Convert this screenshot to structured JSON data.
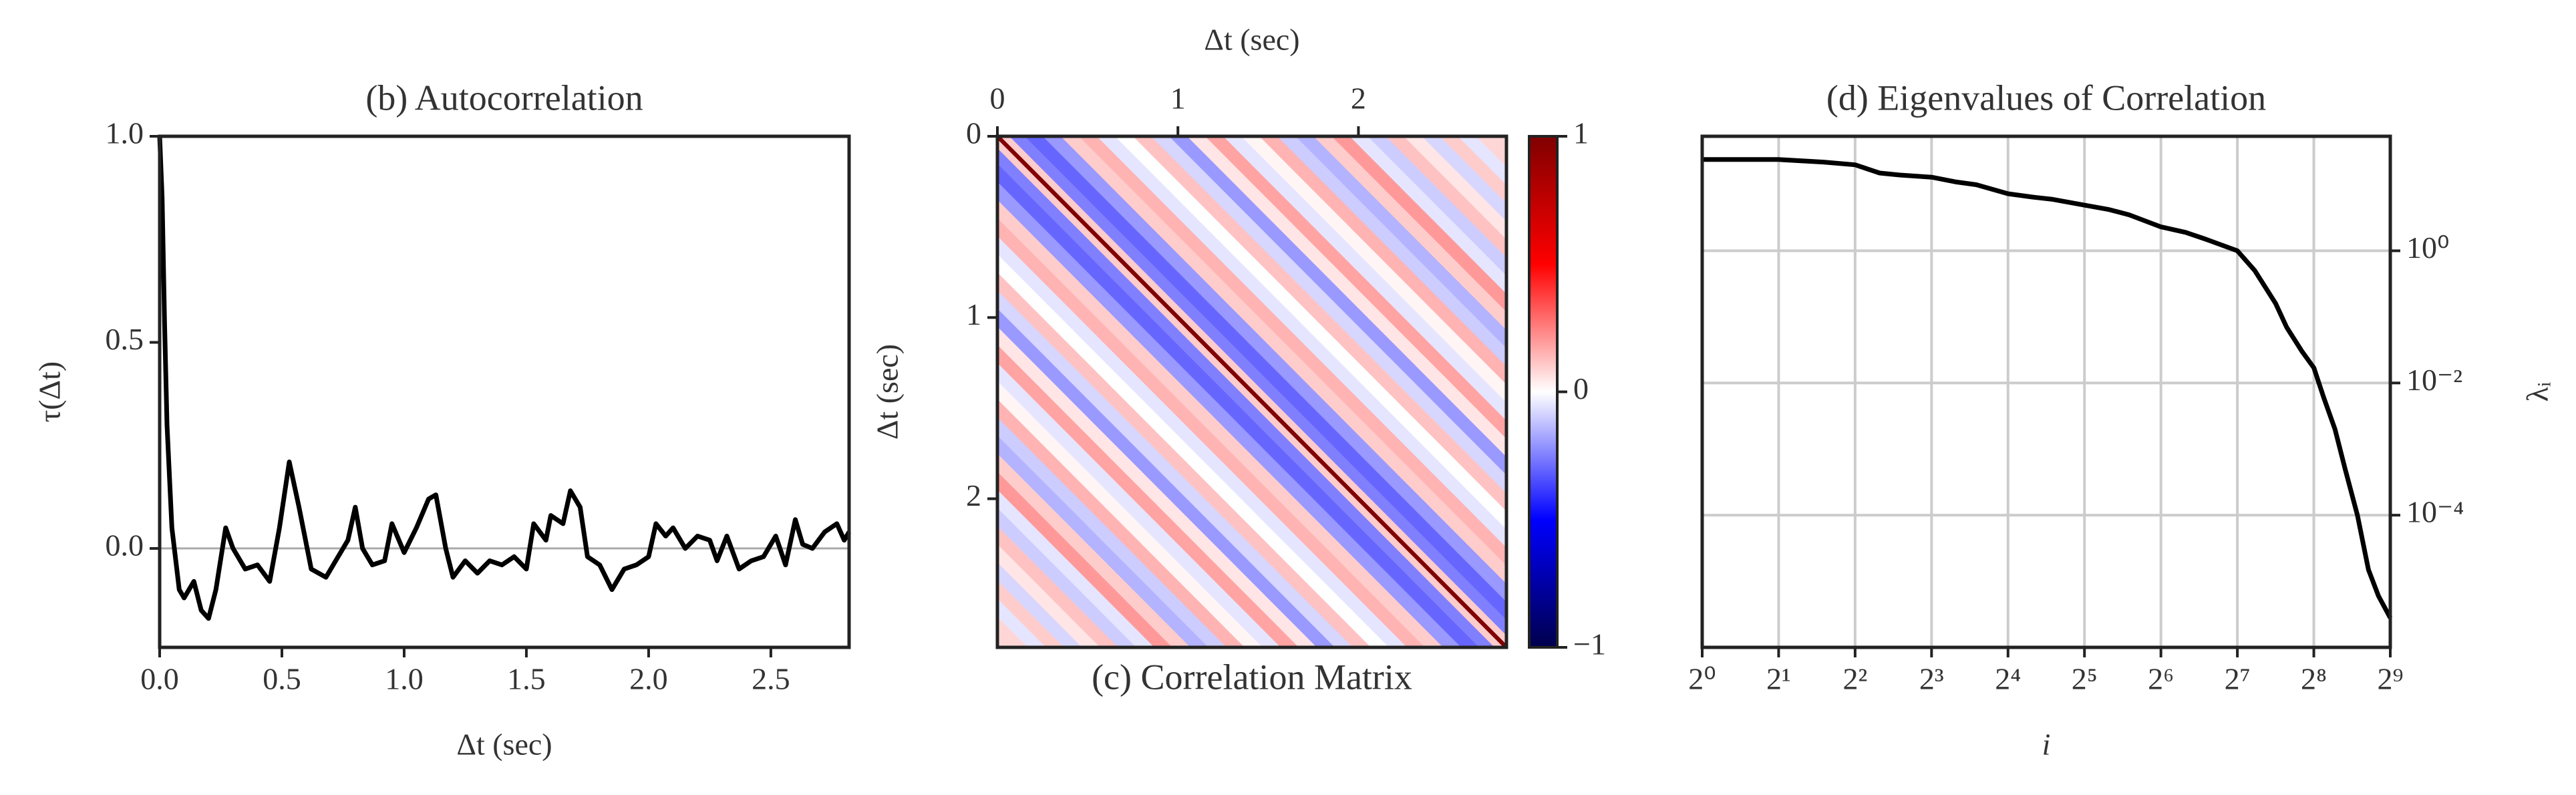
{
  "chart_data": [
    {
      "type": "line",
      "title": "(b) Autocorrelation",
      "xlabel": "Δt (sec)",
      "ylabel": "τ(Δt)",
      "x": [
        0,
        0.01,
        0.02,
        0.03,
        0.05,
        0.08,
        0.1,
        0.14,
        0.17,
        0.2,
        0.23,
        0.27,
        0.3,
        0.35,
        0.4,
        0.45,
        0.49,
        0.53,
        0.57,
        0.62,
        0.68,
        0.72,
        0.77,
        0.8,
        0.83,
        0.87,
        0.92,
        0.95,
        1.0,
        1.05,
        1.1,
        1.13,
        1.17,
        1.2,
        1.25,
        1.3,
        1.35,
        1.4,
        1.45,
        1.5,
        1.53,
        1.58,
        1.6,
        1.65,
        1.68,
        1.72,
        1.75,
        1.8,
        1.85,
        1.9,
        1.95,
        2.0,
        2.03,
        2.07,
        2.1,
        2.15,
        2.2,
        2.25,
        2.28,
        2.32,
        2.37,
        2.42,
        2.47,
        2.52,
        2.56,
        2.6,
        2.63,
        2.67,
        2.72,
        2.77,
        2.8,
        2.82
      ],
      "values": [
        1.0,
        0.85,
        0.55,
        0.3,
        0.05,
        -0.1,
        -0.12,
        -0.08,
        -0.15,
        -0.17,
        -0.1,
        0.05,
        0.0,
        -0.05,
        -0.04,
        -0.08,
        0.05,
        0.21,
        0.1,
        -0.05,
        -0.07,
        -0.03,
        0.02,
        0.1,
        0.0,
        -0.04,
        -0.03,
        0.06,
        -0.01,
        0.05,
        0.12,
        0.13,
        0.0,
        -0.07,
        -0.03,
        -0.06,
        -0.03,
        -0.04,
        -0.02,
        -0.05,
        0.06,
        0.02,
        0.08,
        0.06,
        0.14,
        0.1,
        -0.02,
        -0.04,
        -0.1,
        -0.05,
        -0.04,
        -0.02,
        0.06,
        0.03,
        0.05,
        0.0,
        0.03,
        0.02,
        -0.03,
        0.03,
        -0.05,
        -0.03,
        -0.02,
        0.03,
        -0.04,
        0.07,
        0.01,
        0.0,
        0.04,
        0.06,
        0.02,
        0.04
      ],
      "color": "#000000",
      "hline": 0,
      "hline_color": "#aaaaaa",
      "xlim": [
        0,
        2.82
      ],
      "ylim": [
        -0.24,
        1.0
      ],
      "xticks": [
        {
          "value": 0,
          "label": "0.0"
        },
        0.5,
        {
          "value": 1,
          "label": "1.0"
        },
        1.5,
        {
          "value": 2,
          "label": "2.0"
        },
        2.5
      ],
      "yticks": [
        {
          "value": 0,
          "label": "0.0"
        },
        0.5,
        {
          "value": 1,
          "label": "1.0"
        }
      ],
      "grid": false
    },
    {
      "type": "heatmap",
      "title": "(c) Correlation Matrix",
      "xlabel": "Δt (sec)",
      "ylabel": "Δt (sec)",
      "x": [
        0,
        0.03,
        0.1,
        0.2,
        0.3,
        0.4,
        0.5,
        0.6,
        0.7,
        0.8,
        0.9,
        1.0,
        1.1,
        1.2,
        1.3,
        1.4,
        1.5,
        1.6,
        1.7,
        1.8,
        1.9,
        2.0,
        2.1,
        2.2,
        2.3,
        2.4,
        2.5,
        2.6,
        2.7
      ],
      "values": [
        1.0,
        0.1,
        -0.25,
        -0.3,
        -0.2,
        0.1,
        0.15,
        -0.05,
        0.0,
        0.12,
        -0.08,
        -0.2,
        0.05,
        0.18,
        -0.05,
        0.02,
        0.15,
        -0.1,
        -0.15,
        0.1,
        0.2,
        -0.05,
        -0.1,
        0.12,
        0.05,
        -0.08,
        0.1,
        -0.05,
        0.08
      ],
      "colormap": "seismic",
      "clim": [
        -1,
        1
      ],
      "cticks": [
        {
          "value": -1,
          "label": "−1"
        },
        0,
        1
      ],
      "xaxis_side": "top",
      "yinvert": true,
      "xlim": [
        0,
        2.82
      ],
      "ylim": [
        0,
        2.82
      ],
      "xticks": [
        0,
        1,
        2
      ],
      "yticks": [
        0,
        1,
        2
      ],
      "grid": false
    },
    {
      "type": "line",
      "title": "(d) Eigenvalues of Correlation",
      "xlabel": "i",
      "ylabel": "λᵢ",
      "x": [
        1,
        2,
        3,
        4,
        5,
        6,
        8,
        10,
        12,
        16,
        20,
        24,
        32,
        40,
        48,
        64,
        80,
        96,
        128,
        150,
        181,
        200,
        230,
        256,
        280,
        310,
        340,
        380,
        420,
        460,
        512
      ],
      "values": [
        24,
        24,
        22,
        20,
        15,
        14,
        13,
        11,
        10,
        7.3,
        6.5,
        6,
        4.9,
        4.2,
        3.5,
        2.3,
        1.9,
        1.5,
        1.0,
        0.5,
        0.16,
        0.07,
        0.03,
        0.017,
        0.006,
        0.002,
        0.0005,
        0.0001,
        1.5e-05,
        6e-06,
        2.8e-06
      ],
      "color": "#000000",
      "xscale": "log2",
      "yscale": "log",
      "yaxis_side": "right",
      "xlim": [
        1,
        512
      ],
      "ylim": [
        1e-06,
        54
      ],
      "xticks": [
        {
          "value": 1,
          "label": "2⁰"
        },
        {
          "value": 2,
          "label": "2¹"
        },
        {
          "value": 4,
          "label": "2²"
        },
        {
          "value": 8,
          "label": "2³"
        },
        {
          "value": 16,
          "label": "2⁴"
        },
        {
          "value": 32,
          "label": "2⁵"
        },
        {
          "value": 64,
          "label": "2⁶"
        },
        {
          "value": 128,
          "label": "2⁷"
        },
        {
          "value": 256,
          "label": "2⁸"
        },
        {
          "value": 512,
          "label": "2⁹"
        }
      ],
      "yticks": [
        {
          "value": 0.0001,
          "label": "10⁻⁴"
        },
        {
          "value": 0.01,
          "label": "10⁻²"
        },
        {
          "value": 1,
          "label": "10⁰"
        }
      ],
      "grid": true
    }
  ]
}
